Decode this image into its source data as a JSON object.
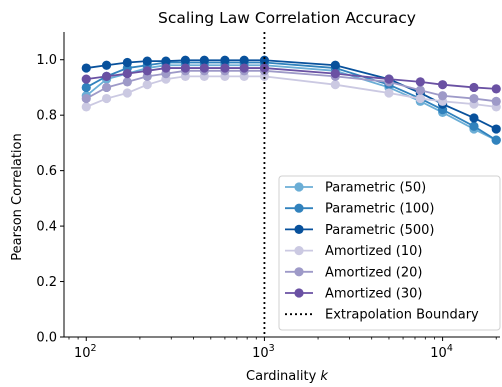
{
  "chart_data": {
    "type": "line",
    "title": "Scaling Law Correlation Accuracy",
    "xlabel": "Cardinality k",
    "xlabel_text": "Cardinality ",
    "xlabel_var": "k",
    "ylabel": "Pearson Correlation",
    "xscale": "log",
    "xlim": [
      75,
      21000
    ],
    "ylim": [
      0,
      1.1
    ],
    "xticks": [
      {
        "value": 100,
        "base": "10",
        "exp": "2"
      },
      {
        "value": 1000,
        "base": "10",
        "exp": "3"
      },
      {
        "value": 10000,
        "base": "10",
        "exp": "4"
      }
    ],
    "yticks": [
      {
        "value": 0.0,
        "label": "0.0"
      },
      {
        "value": 0.2,
        "label": "0.2"
      },
      {
        "value": 0.4,
        "label": "0.4"
      },
      {
        "value": 0.6,
        "label": "0.6"
      },
      {
        "value": 0.8,
        "label": "0.8"
      },
      {
        "value": 1.0,
        "label": "1.0"
      }
    ],
    "grid": false,
    "legend_position": "lower-right",
    "vline": {
      "x": 1000,
      "name": "Extrapolation Boundary",
      "color": "#000000",
      "style": "dotted"
    },
    "x": [
      100,
      130,
      170,
      220,
      280,
      360,
      460,
      600,
      770,
      1000,
      2500,
      5000,
      7500,
      10000,
      15000,
      20000
    ],
    "series": [
      {
        "name": "Parametric (50)",
        "color": "#6baed6",
        "values": [
          0.87,
          0.93,
          0.95,
          0.97,
          0.98,
          0.98,
          0.98,
          0.98,
          0.98,
          0.98,
          0.96,
          0.9,
          0.85,
          0.81,
          0.75,
          0.71
        ]
      },
      {
        "name": "Parametric (100)",
        "color": "#3182bd",
        "values": [
          0.9,
          0.94,
          0.97,
          0.98,
          0.99,
          0.99,
          0.99,
          0.99,
          0.99,
          0.99,
          0.97,
          0.91,
          0.86,
          0.82,
          0.76,
          0.71
        ]
      },
      {
        "name": "Parametric (500)",
        "color": "#08519c",
        "values": [
          0.97,
          0.98,
          0.99,
          0.995,
          0.995,
          0.998,
          0.998,
          0.998,
          0.998,
          0.998,
          0.98,
          0.93,
          0.88,
          0.84,
          0.79,
          0.75
        ]
      },
      {
        "name": "Amortized (10)",
        "color": "#cbc9e2",
        "values": [
          0.83,
          0.86,
          0.88,
          0.91,
          0.93,
          0.94,
          0.94,
          0.94,
          0.94,
          0.94,
          0.91,
          0.88,
          0.86,
          0.85,
          0.84,
          0.83
        ]
      },
      {
        "name": "Amortized (20)",
        "color": "#9e9ac8",
        "values": [
          0.86,
          0.9,
          0.92,
          0.94,
          0.95,
          0.96,
          0.96,
          0.96,
          0.96,
          0.96,
          0.94,
          0.92,
          0.89,
          0.87,
          0.86,
          0.85
        ]
      },
      {
        "name": "Amortized (30)",
        "color": "#6a51a3",
        "values": [
          0.93,
          0.94,
          0.95,
          0.96,
          0.97,
          0.97,
          0.97,
          0.97,
          0.97,
          0.97,
          0.95,
          0.93,
          0.92,
          0.91,
          0.9,
          0.895
        ]
      }
    ]
  }
}
